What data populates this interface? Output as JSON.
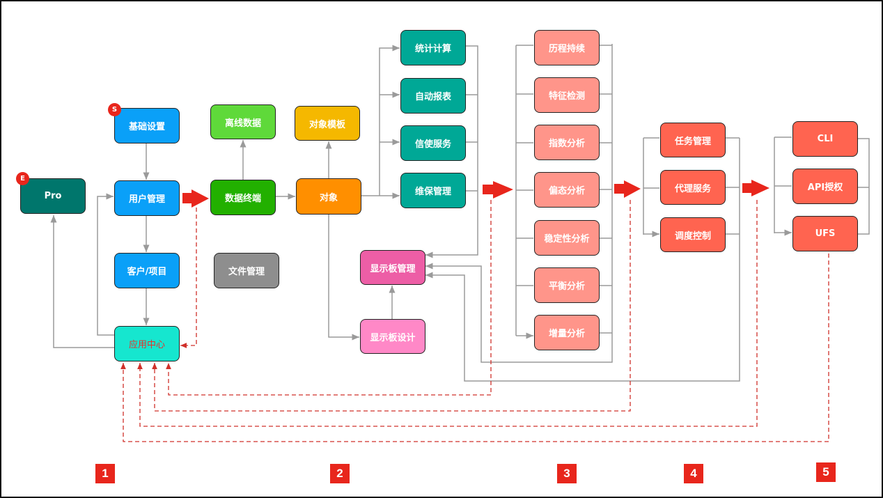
{
  "colors": {
    "connector": "#9a9a9a",
    "dashed": "#d0302a",
    "flow_arrow": "#e8261c"
  },
  "column1": {
    "pro": "Pro",
    "pro_badge": "E",
    "basic_settings": "基础设置",
    "basic_badge": "S",
    "user_management": "用户管理",
    "customer_project": "客户/项目",
    "app_center": "应用中心"
  },
  "column1b": {
    "offline_data": "离线数据",
    "data_terminal": "数据终端",
    "file_management": "文件管理"
  },
  "column2": {
    "object_template": "对象模板",
    "object": "对象",
    "stat_calc": "统计计算",
    "auto_report": "自动报表",
    "messenger": "信使服务",
    "maintenance": "维保管理",
    "dashboard_mgmt": "显示板管理",
    "dashboard_design": "显示板设计"
  },
  "column3": [
    "历程持续",
    "特征检测",
    "指数分析",
    "偏态分析",
    "稳定性分析",
    "平衡分析",
    "增量分析"
  ],
  "column4": [
    "任务管理",
    "代理服务",
    "调度控制"
  ],
  "column5": [
    "CLI",
    "API授权",
    "UFS"
  ],
  "stage_numbers": [
    "1",
    "2",
    "3",
    "4",
    "5"
  ]
}
